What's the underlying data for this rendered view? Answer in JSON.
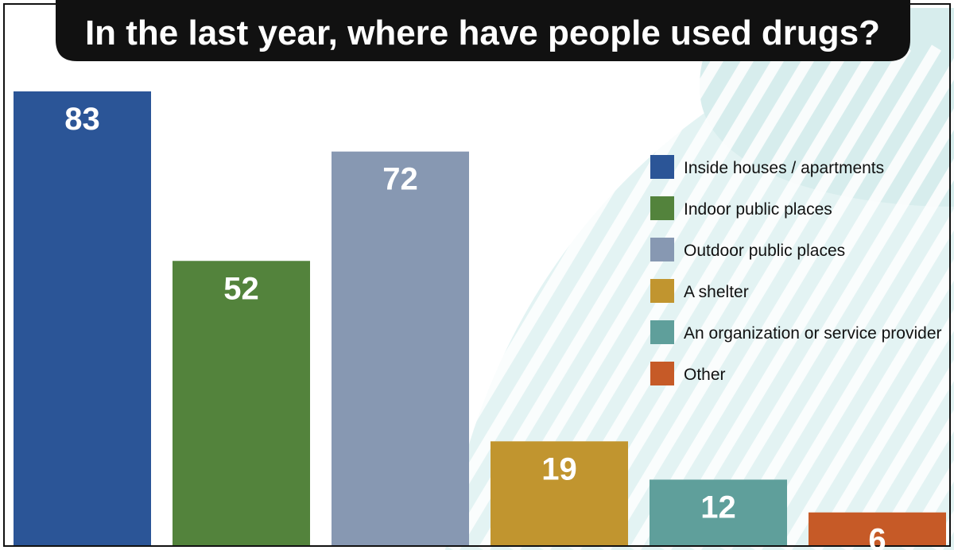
{
  "chart_data": {
    "type": "bar",
    "title": "In the last year, where have people used drugs?",
    "categories": [
      "Inside houses / apartments",
      "Indoor public places",
      "Outdoor public places",
      "A shelter",
      "An organization or service provider",
      "Other"
    ],
    "values": [
      83,
      52,
      72,
      19,
      12,
      6
    ],
    "colors": [
      "#2b5597",
      "#53833c",
      "#8798b2",
      "#c1952f",
      "#5f9f9b",
      "#c65a27"
    ],
    "ylim": [
      0,
      83
    ],
    "grid": false,
    "legend_position": "right"
  }
}
